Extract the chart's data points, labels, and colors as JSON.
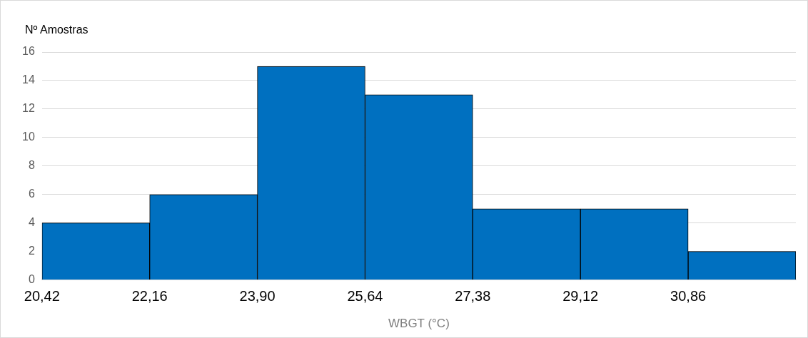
{
  "chart_data": {
    "type": "histogram",
    "ylabel": "Nº Amostras",
    "xlabel": "WBGT (°C)",
    "bins": [
      20.42,
      22.16,
      23.9,
      25.64,
      27.38,
      29.12,
      30.86,
      32.6
    ],
    "values": [
      4,
      6,
      15,
      13,
      5,
      5,
      2
    ],
    "color": "#0070c0",
    "xlim": [
      20.42,
      32.6
    ],
    "xticks": [
      {
        "value": 20.42,
        "label": "20,42"
      },
      {
        "value": 22.16,
        "label": "22,16"
      },
      {
        "value": 23.9,
        "label": "23,90"
      },
      {
        "value": 25.64,
        "label": "25,64"
      },
      {
        "value": 27.38,
        "label": "27,38"
      },
      {
        "value": 29.12,
        "label": "29,12"
      },
      {
        "value": 30.86,
        "label": "30,86"
      }
    ],
    "ylim": [
      0,
      16
    ],
    "yticks": [
      0,
      2,
      4,
      6,
      8,
      10,
      12,
      14,
      16
    ],
    "grid": "y",
    "legend": false
  }
}
